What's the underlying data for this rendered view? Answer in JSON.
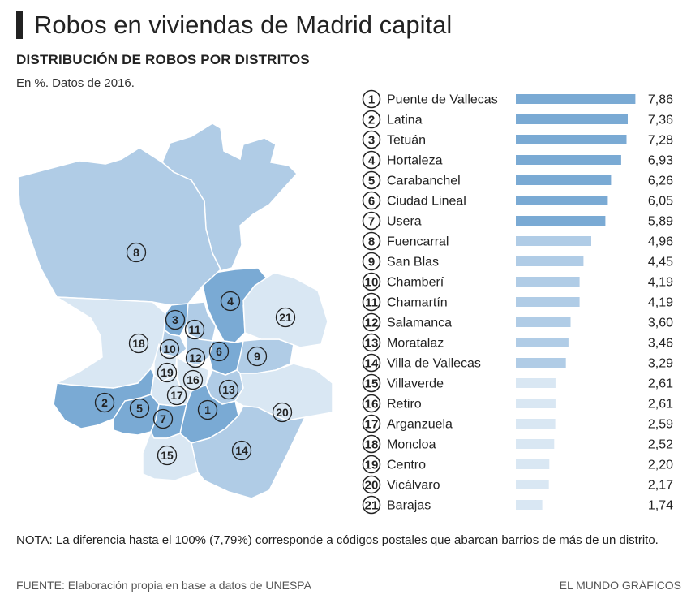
{
  "header": {
    "title": "Robos en viviendas de Madrid capital",
    "subtitle": "DISTRIBUCIÓN DE ROBOS POR DISTRITOS",
    "unit_note": "En %. Datos de 2016."
  },
  "chart_data": {
    "type": "bar",
    "orientation": "horizontal",
    "title": "Robos en viviendas de Madrid capital",
    "subtitle": "DISTRIBUCIÓN DE ROBOS POR DISTRITOS",
    "categories": [
      "Puente de Vallecas",
      "Latina",
      "Tetuán",
      "Hortaleza",
      "Carabanchel",
      "Ciudad Lineal",
      "Usera",
      "Fuencarral",
      "San Blas",
      "Chamberí",
      "Chamartín",
      "Salamanca",
      "Moratalaz",
      "Villa de Vallecas",
      "Villaverde",
      "Retiro",
      "Arganzuela",
      "Moncloa",
      "Centro",
      "Vicálvaro",
      "Barajas"
    ],
    "ranks": [
      "1",
      "2",
      "3",
      "4",
      "5",
      "6",
      "7",
      "8",
      "9",
      "10",
      "11",
      "12",
      "13",
      "14",
      "15",
      "16",
      "17",
      "18",
      "19",
      "20",
      "21"
    ],
    "values": [
      7.86,
      7.36,
      7.28,
      6.93,
      6.26,
      6.05,
      5.89,
      4.96,
      4.45,
      4.19,
      4.19,
      3.6,
      3.46,
      3.29,
      2.61,
      2.61,
      2.59,
      2.52,
      2.2,
      2.17,
      1.74
    ],
    "value_labels": [
      "7,86",
      "7,36",
      "7,28",
      "6,93",
      "6,26",
      "6,05",
      "5,89",
      "4,96",
      "4,45",
      "4,19",
      "4,19",
      "3,60",
      "3,46",
      "3,29",
      "2,61",
      "2,61",
      "2,59",
      "2,52",
      "2,20",
      "2,17",
      "1,74"
    ],
    "xlim": [
      0,
      8
    ],
    "tiers": [
      {
        "min": 5.5,
        "color": "#7aaad4"
      },
      {
        "min": 3.0,
        "color": "#b0cce6"
      },
      {
        "min": 0,
        "color": "#d9e7f3"
      }
    ],
    "grid": false,
    "legend": "none"
  },
  "map": {
    "label_color": "#222222",
    "stroke_color": "#ffffff"
  },
  "footer": {
    "note": "NOTA: La diferencia hasta el 100% (7,79%) corresponde a códigos postales que abarcan barrios de más de un distrito.",
    "source": "FUENTE: Elaboración propia en base a datos de UNESPA",
    "credit": "EL MUNDO GRÁFICOS"
  }
}
